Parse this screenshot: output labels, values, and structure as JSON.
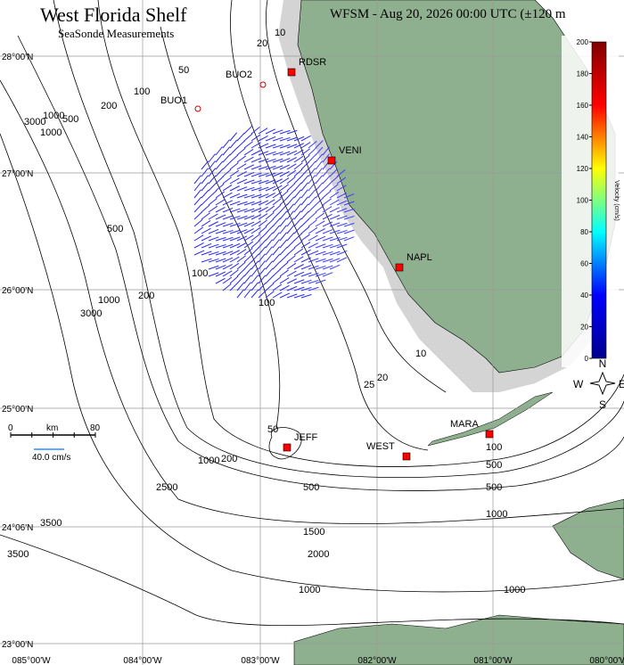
{
  "header": {
    "title": "West Florida Shelf",
    "subtitle": "SeaSonde Measurements",
    "info": "WFSM - Aug 20, 2026 00:00 UTC (±120 m"
  },
  "latitudes": [
    "28°00'N",
    "27°00'N",
    "26°00'N",
    "25°00'N",
    "24°06'N",
    "23°00'N"
  ],
  "longitudes": [
    "085°00'W",
    "084°00'W",
    "083°00'W",
    "082°00'W",
    "081°00'W",
    "080°00'W"
  ],
  "stations": [
    "BUO2",
    "BUO1",
    "RDSR",
    "VENI",
    "NAPL",
    "JEFF",
    "WEST",
    "MARA"
  ],
  "contour_labels": [
    "10",
    "20",
    "50",
    "100",
    "200",
    "500",
    "1000",
    "3000",
    "1000",
    "500",
    "200",
    "100",
    "1000",
    "3000",
    "100",
    "10",
    "25",
    "20",
    "50",
    "200",
    "1000",
    "2500",
    "3500",
    "3500",
    "500",
    "500",
    "100",
    "500",
    "1000",
    "1500",
    "2000",
    "1000",
    "1000"
  ],
  "scale_bar": {
    "start": "0",
    "unit": "km",
    "end": "80",
    "reference": "40.0 cm/s"
  },
  "colorbar": {
    "title": "Velocity (cm/s)",
    "ticks": [
      0,
      20,
      40,
      60,
      80,
      100,
      120,
      140,
      160,
      180,
      200
    ],
    "lim": [
      0,
      200
    ]
  },
  "compass": {
    "north": "N",
    "east": "E",
    "west": "W",
    "south": "S"
  }
}
